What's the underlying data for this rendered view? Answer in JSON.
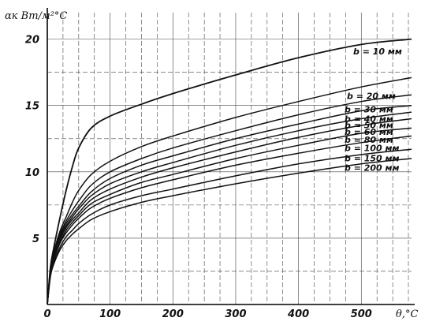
{
  "chart_data": {
    "type": "line",
    "ylabel": "αк Вт/м²°C",
    "xlabel": "θ,°C",
    "xlim": [
      0,
      580
    ],
    "ylim": [
      0,
      22
    ],
    "x_ticks": [
      0,
      100,
      200,
      300,
      400,
      500
    ],
    "y_ticks": [
      5,
      10,
      15,
      20
    ],
    "x_tick_labels": [
      "0",
      "100",
      "200",
      "300",
      "400",
      "500"
    ],
    "y_tick_labels": [
      "5",
      "10",
      "15",
      "20"
    ],
    "grid": true,
    "x": [
      0,
      5,
      10,
      20,
      30,
      40,
      50,
      70,
      100,
      150,
      200,
      300,
      400,
      500,
      580
    ],
    "series": [
      {
        "name": "b = 10 мм",
        "values": [
          0,
          2.8,
          4.2,
          6.5,
          8.6,
          10.4,
          11.8,
          13.3,
          14.2,
          15.1,
          15.9,
          17.3,
          18.6,
          19.6,
          20.0
        ]
      },
      {
        "name": "b = 20 мм",
        "values": [
          0,
          2.7,
          3.9,
          5.5,
          6.6,
          7.7,
          8.6,
          9.8,
          10.8,
          11.9,
          12.7,
          14.1,
          15.3,
          16.4,
          17.1
        ]
      },
      {
        "name": "b = 30 мм",
        "values": [
          0,
          2.6,
          3.8,
          5.3,
          6.3,
          7.1,
          7.8,
          9.0,
          10.0,
          11.0,
          11.8,
          13.1,
          14.3,
          15.3,
          15.8
        ]
      },
      {
        "name": "b = 40 мм",
        "values": [
          0,
          2.5,
          3.7,
          5.1,
          6.1,
          6.8,
          7.4,
          8.5,
          9.5,
          10.5,
          11.2,
          12.5,
          13.6,
          14.6,
          15.0
        ]
      },
      {
        "name": "b = 50 мм",
        "values": [
          0,
          2.5,
          3.6,
          5.0,
          5.9,
          6.6,
          7.2,
          8.2,
          9.1,
          10.0,
          10.7,
          12.0,
          13.1,
          14.0,
          14.5
        ]
      },
      {
        "name": "b = 60 мм",
        "values": [
          0,
          2.4,
          3.5,
          4.9,
          5.8,
          6.4,
          6.9,
          7.9,
          8.7,
          9.6,
          10.3,
          11.5,
          12.6,
          13.5,
          14.0
        ]
      },
      {
        "name": "b = 80 мм",
        "values": [
          0,
          2.4,
          3.4,
          4.7,
          5.6,
          6.2,
          6.7,
          7.6,
          8.3,
          9.2,
          9.8,
          11.0,
          12.0,
          12.9,
          13.3
        ]
      },
      {
        "name": "b = 100 мм",
        "values": [
          0,
          2.3,
          3.3,
          4.6,
          5.4,
          6.0,
          6.5,
          7.3,
          8.0,
          8.8,
          9.4,
          10.5,
          11.4,
          12.2,
          12.7
        ]
      },
      {
        "name": "b = 150 мм",
        "values": [
          0,
          2.2,
          3.1,
          4.3,
          5.1,
          5.6,
          6.1,
          6.8,
          7.5,
          8.2,
          8.7,
          9.7,
          10.6,
          11.3,
          11.7
        ]
      },
      {
        "name": "b = 200 мм",
        "values": [
          0,
          2.1,
          3.0,
          4.1,
          4.8,
          5.3,
          5.7,
          6.4,
          7.0,
          7.7,
          8.2,
          9.1,
          9.9,
          10.6,
          11.0
        ]
      }
    ],
    "series_labels": [
      "b = 10 мм",
      "b = 20 мм",
      "b = 30 мм",
      "b = 40 мм",
      "b = 50 мм",
      "b = 60 мм",
      "b = 80 мм",
      "b = 100 мм",
      "b = 150 мм",
      "b = 200 мм"
    ],
    "line_color": "#111111",
    "grid_color": "#444444",
    "background": "#ffffff"
  }
}
